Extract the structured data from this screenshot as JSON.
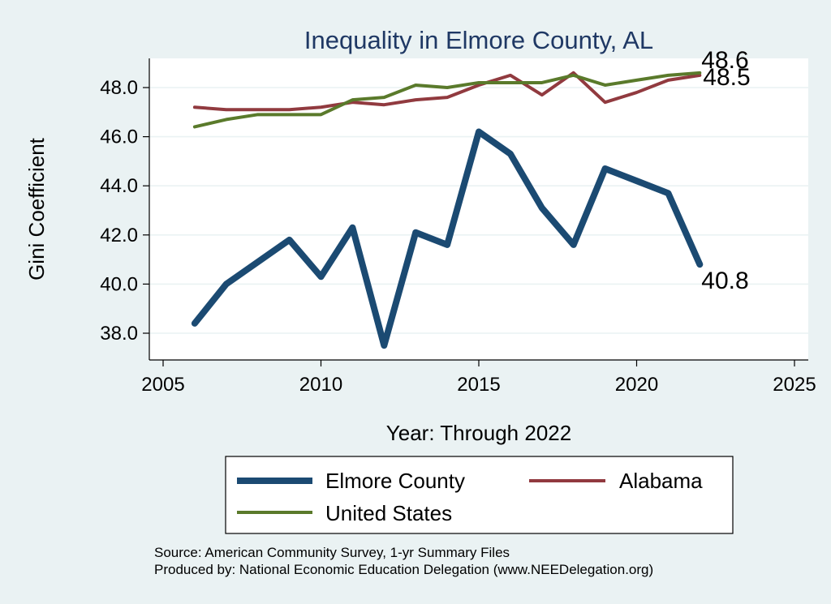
{
  "chart_data": {
    "type": "line",
    "title": "Inequality in Elmore County, AL",
    "xlabel": "Year: Through 2022",
    "ylabel": "Gini Coefficient",
    "xlim": [
      2005,
      2025
    ],
    "ylim": [
      37.0,
      49.2
    ],
    "x_ticks": [
      2005,
      2010,
      2015,
      2020,
      2025
    ],
    "y_ticks": [
      38.0,
      40.0,
      42.0,
      44.0,
      46.0,
      48.0
    ],
    "y_tick_labels": [
      "38.0",
      "40.0",
      "42.0",
      "44.0",
      "46.0",
      "48.0"
    ],
    "grid": true,
    "legend_placement": "bottom",
    "x": [
      2006,
      2007,
      2008,
      2009,
      2010,
      2011,
      2012,
      2013,
      2014,
      2015,
      2016,
      2017,
      2018,
      2019,
      2020,
      2021,
      2022
    ],
    "series": [
      {
        "name": "Elmore County",
        "color": "#1b4a72",
        "values": [
          38.4,
          40.0,
          40.9,
          41.8,
          40.3,
          42.3,
          37.5,
          42.1,
          41.6,
          46.2,
          45.3,
          43.1,
          41.6,
          44.7,
          44.2,
          43.7,
          40.8
        ],
        "end_label": "40.8"
      },
      {
        "name": "Alabama",
        "color": "#913a3f",
        "values": [
          47.2,
          47.1,
          47.1,
          47.1,
          47.2,
          47.4,
          47.3,
          47.5,
          47.6,
          48.1,
          48.5,
          47.7,
          48.6,
          47.4,
          47.8,
          48.3,
          48.5
        ],
        "end_label": "48.5"
      },
      {
        "name": "United States",
        "color": "#5a7a2b",
        "values": [
          46.4,
          46.7,
          46.9,
          46.9,
          46.9,
          47.5,
          47.6,
          48.1,
          48.0,
          48.2,
          48.2,
          48.2,
          48.5,
          48.1,
          48.3,
          48.5,
          48.6
        ],
        "end_label": "48.6"
      }
    ],
    "notes": [
      "Source: American Community Survey, 1-yr Summary Files",
      "Produced by: National Economic Education Delegation (www.NEEDelegation.org)"
    ]
  }
}
